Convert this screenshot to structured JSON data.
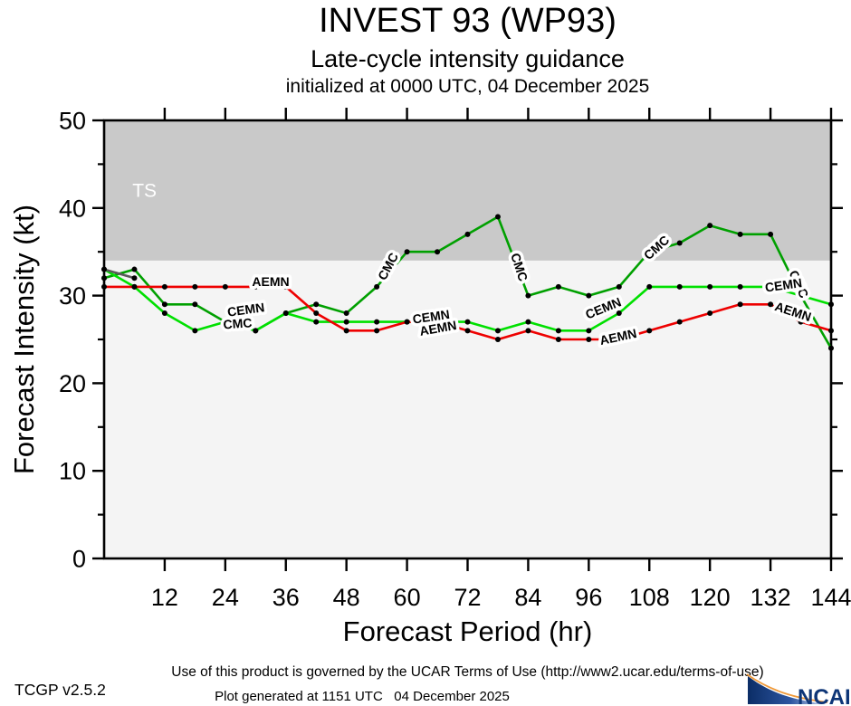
{
  "header": {
    "title": "INVEST 93 (WP93)",
    "subtitle": "Late-cycle intensity guidance",
    "init_line": "initialized at 0000 UTC, 04 December 2025"
  },
  "footer": {
    "terms": "Use of this product is governed by the UCAR Terms of Use (http://www2.ucar.edu/terms-of-use)",
    "version": "TCGP v2.5.2",
    "generated": "Plot generated at 1151 UTC   04 December 2025",
    "logo_text": "NCAR"
  },
  "chart_data": {
    "type": "line",
    "title": "INVEST 93 (WP93)",
    "subtitle": "Late-cycle intensity guidance",
    "init_line": "initialized at 0000 UTC, 04 December 2025",
    "xlabel": "Forecast Period (hr)",
    "ylabel": "Forecast Intensity (kt)",
    "xlim": [
      0,
      144
    ],
    "ylim": [
      0,
      50
    ],
    "x_ticks": [
      12,
      24,
      36,
      48,
      60,
      72,
      84,
      96,
      108,
      120,
      132,
      144
    ],
    "y_ticks": [
      0,
      10,
      20,
      30,
      40,
      50
    ],
    "y_minor_ticks": [
      5,
      15,
      25,
      35,
      45
    ],
    "grid": false,
    "legend_position": "inline-labels",
    "plot_bg_color": "#f4f4f4",
    "threshold_band": {
      "label": "TS",
      "from_kt": 34,
      "to_kt": 50,
      "color": "#c9c9c9",
      "label_color": "#ffffff",
      "label_pos": {
        "hr": 8,
        "kt": 42
      }
    },
    "x_hours": [
      0,
      6,
      12,
      18,
      24,
      30,
      36,
      42,
      48,
      54,
      60,
      66,
      72,
      78,
      84,
      90,
      96,
      102,
      108,
      114,
      120,
      126,
      132,
      138,
      144
    ],
    "series": [
      {
        "name": "CMC",
        "color": "#00a000",
        "values": [
          32,
          33,
          29,
          29,
          27,
          26,
          28,
          29,
          28,
          31,
          35,
          35,
          37,
          39,
          30,
          31,
          30,
          31,
          35,
          36,
          38,
          37,
          37,
          30,
          24
        ]
      },
      {
        "name": "CEMN",
        "color": "#00e000",
        "values": [
          33,
          31,
          28,
          26,
          27,
          26,
          28,
          27,
          27,
          27,
          27,
          27,
          27,
          26,
          27,
          26,
          26,
          28,
          31,
          31,
          31,
          31,
          31,
          30,
          29
        ]
      },
      {
        "name": "AEMN",
        "color": "#ee0000",
        "values": [
          31,
          31,
          31,
          31,
          31,
          31,
          31,
          28,
          26,
          26,
          27,
          27,
          26,
          25,
          26,
          25,
          25,
          25,
          26,
          27,
          28,
          29,
          29,
          27,
          26
        ]
      },
      {
        "name": "",
        "color": "#5a5a5a",
        "x": [
          0,
          6
        ],
        "values": [
          33,
          32
        ]
      }
    ],
    "inline_labels": [
      {
        "text": "AEMN",
        "hr": 33.0,
        "kt": 31.1,
        "rot": 0
      },
      {
        "text": "CEMN",
        "hr": 28.2,
        "kt": 27.9,
        "rot": -8
      },
      {
        "text": "CMC",
        "hr": 26.5,
        "kt": 26.3,
        "rot": -4
      },
      {
        "text": "CMC",
        "hr": 57.0,
        "kt": 33.1,
        "rot": -62
      },
      {
        "text": "CEMN",
        "hr": 64.9,
        "kt": 27.1,
        "rot": -8
      },
      {
        "text": "AEMN",
        "hr": 66.3,
        "kt": 25.8,
        "rot": -10
      },
      {
        "text": "CMC",
        "hr": 81.4,
        "kt": 33.1,
        "rot": 72
      },
      {
        "text": "CEMN",
        "hr": 99.2,
        "kt": 28.1,
        "rot": -22
      },
      {
        "text": "AEMN",
        "hr": 102.0,
        "kt": 24.8,
        "rot": -12
      },
      {
        "text": "CMC",
        "hr": 110.0,
        "kt": 35.1,
        "rot": -42
      },
      {
        "text": "CMC",
        "hr": 136.8,
        "kt": 31.1,
        "rot": 65
      },
      {
        "text": "CEMN",
        "hr": 134.7,
        "kt": 30.7,
        "rot": -8
      },
      {
        "text": "AEMN",
        "hr": 136.2,
        "kt": 27.7,
        "rot": 18
      }
    ]
  },
  "colors": {
    "axis": "#000000",
    "marker": "#000000",
    "ncar_blue": "#0d3577",
    "ncar_gradient_dark": "#0b2d66",
    "ncar_gradient_light": "#c3d1ec",
    "ncar_orange": "#f09b3c"
  }
}
